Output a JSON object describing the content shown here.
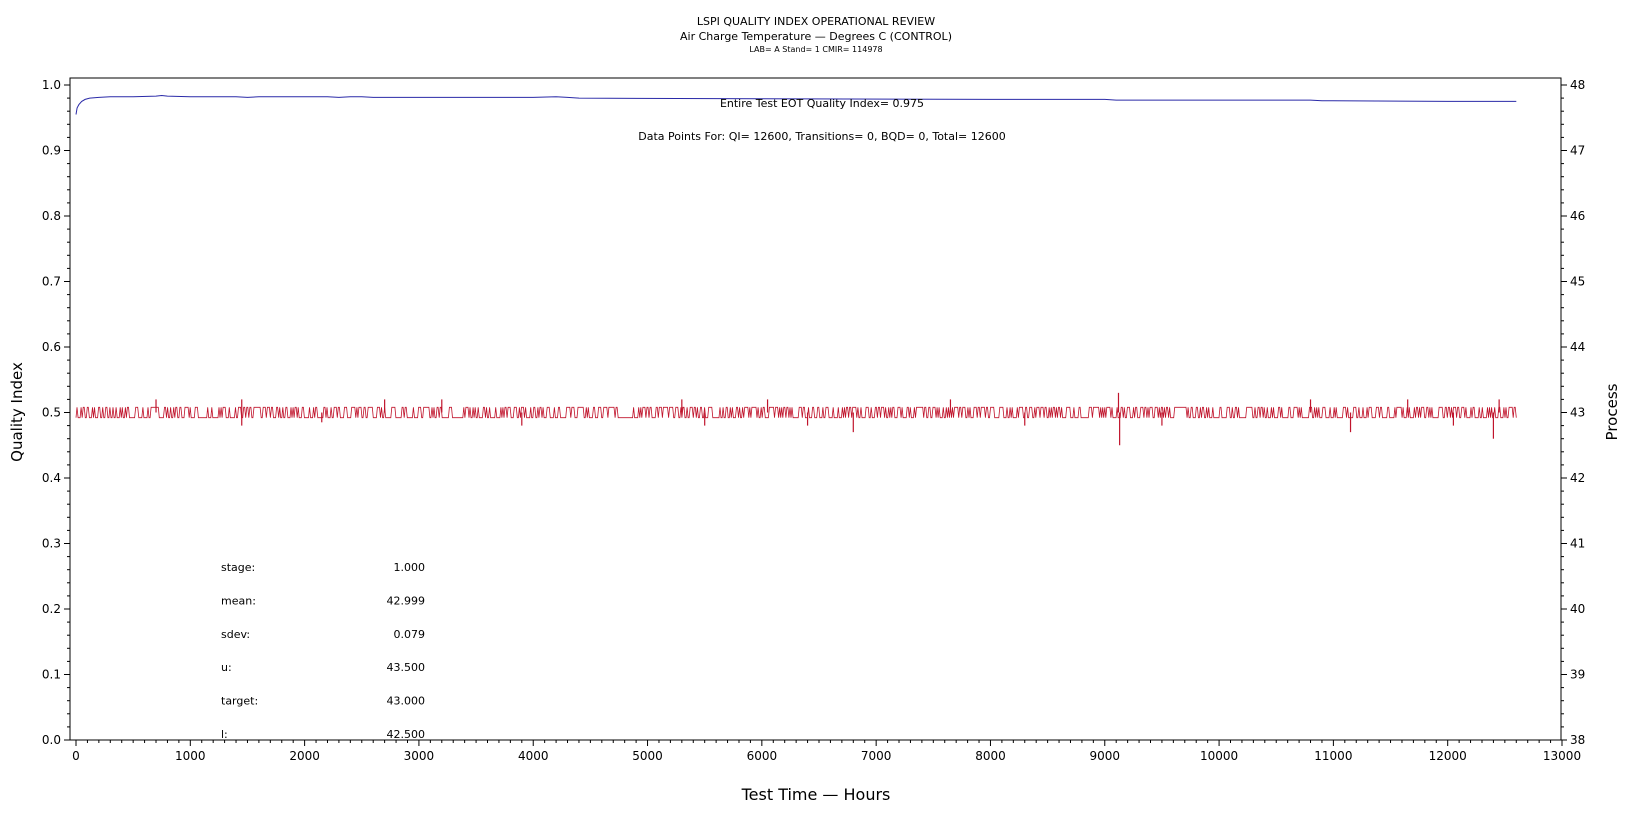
{
  "chart_data": {
    "type": "line",
    "title": "LSPI QUALITY INDEX OPERATIONAL REVIEW",
    "subtitle": "Air Charge Temperature — Degrees C (CONTROL)",
    "subtitle2": "LAB= A Stand= 1 CMIR= 114978",
    "xlabel": "Test Time — Hours",
    "ylabel": "Quality Index",
    "y2label": "Process",
    "xlim": [
      0,
      13000
    ],
    "ylim": [
      0.0,
      1.0
    ],
    "y2lim": [
      38,
      48
    ],
    "x_ticks": [
      "0",
      "1000",
      "2000",
      "3000",
      "4000",
      "5000",
      "6000",
      "7000",
      "8000",
      "9000",
      "10000",
      "11000",
      "12000",
      "13000"
    ],
    "y_ticks": [
      "0.0",
      "0.1",
      "0.2",
      "0.3",
      "0.4",
      "0.5",
      "0.6",
      "0.7",
      "0.8",
      "0.9",
      "1.0"
    ],
    "y2_ticks": [
      "38",
      "39",
      "40",
      "41",
      "42",
      "43",
      "44",
      "45",
      "46",
      "47",
      "48"
    ],
    "grid": false,
    "annotations": {
      "quality_index": "Entire Test EOT Quality Index=   0.975",
      "data_points": "Data Points For: QI= 12600, Transitions=     0, BQD=     0, Total= 12600"
    },
    "stats": [
      {
        "label": "stage:",
        "value": "1.000"
      },
      {
        "label": "mean:",
        "value": "42.999"
      },
      {
        "label": "sdev:",
        "value": "0.079"
      },
      {
        "label": "u:",
        "value": "43.500"
      },
      {
        "label": "target:",
        "value": "43.000"
      },
      {
        "label": "l:",
        "value": "42.500"
      }
    ],
    "series": [
      {
        "axis": "left",
        "color": "#2a2aa8",
        "x": [
          0,
          10,
          25,
          50,
          80,
          120,
          200,
          300,
          500,
          700,
          750,
          800,
          1000,
          1400,
          1500,
          1600,
          2200,
          2300,
          2400,
          2500,
          2600,
          3000,
          4000,
          4200,
          4300,
          4400,
          6000,
          8000,
          9000,
          9100,
          10000,
          10800,
          10900,
          11000,
          12000,
          12600
        ],
        "y": [
          0.955,
          0.965,
          0.97,
          0.975,
          0.978,
          0.98,
          0.981,
          0.982,
          0.982,
          0.983,
          0.984,
          0.983,
          0.982,
          0.982,
          0.981,
          0.982,
          0.982,
          0.981,
          0.982,
          0.982,
          0.981,
          0.981,
          0.981,
          0.982,
          0.981,
          0.98,
          0.979,
          0.978,
          0.978,
          0.977,
          0.977,
          0.977,
          0.976,
          0.976,
          0.975,
          0.975
        ]
      },
      {
        "axis": "right",
        "color": "#c0142c",
        "x": [
          0,
          12600
        ],
        "y_center": 43.0,
        "y_band": [
          42.9,
          43.1
        ],
        "spikes": [
          {
            "x": 700,
            "y": 43.2
          },
          {
            "x": 1450,
            "y": 43.2
          },
          {
            "x": 1450,
            "y": 42.8
          },
          {
            "x": 2150,
            "y": 42.85
          },
          {
            "x": 2700,
            "y": 43.2
          },
          {
            "x": 3200,
            "y": 43.2
          },
          {
            "x": 3900,
            "y": 42.8
          },
          {
            "x": 5300,
            "y": 43.2
          },
          {
            "x": 5500,
            "y": 42.8
          },
          {
            "x": 6050,
            "y": 43.2
          },
          {
            "x": 6400,
            "y": 42.8
          },
          {
            "x": 6800,
            "y": 42.7
          },
          {
            "x": 7650,
            "y": 43.2
          },
          {
            "x": 8300,
            "y": 42.8
          },
          {
            "x": 9120,
            "y": 43.3
          },
          {
            "x": 9130,
            "y": 42.5
          },
          {
            "x": 9500,
            "y": 42.8
          },
          {
            "x": 10800,
            "y": 43.2
          },
          {
            "x": 11150,
            "y": 42.7
          },
          {
            "x": 11650,
            "y": 43.2
          },
          {
            "x": 12050,
            "y": 42.8
          },
          {
            "x": 12400,
            "y": 42.6
          },
          {
            "x": 12450,
            "y": 43.2
          }
        ]
      }
    ]
  }
}
